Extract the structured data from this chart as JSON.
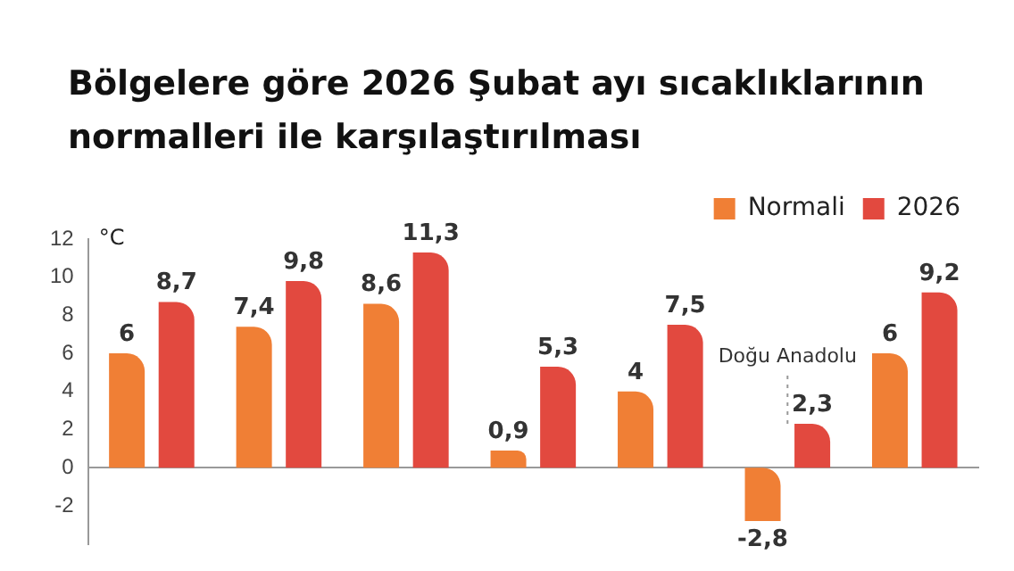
{
  "chart_data": {
    "type": "bar",
    "title": "Bölgelere göre 2026 Şubat ayı sıcaklıklarının normalleri ile karşılaştırılması",
    "ylabel": "°C",
    "categories": [
      null,
      null,
      null,
      null,
      null,
      "Doğu Anadolu",
      null
    ],
    "series": [
      {
        "name": "Normali",
        "color": "#f07f35",
        "values": [
          6,
          7.4,
          8.6,
          0.9,
          4,
          -2.8,
          6
        ],
        "value_labels": [
          "6",
          "7,4",
          "8,6",
          "0,9",
          "4",
          "-2,8",
          "6"
        ]
      },
      {
        "name": "2026",
        "color": "#e2493f",
        "values": [
          8.7,
          9.8,
          11.3,
          5.3,
          7.5,
          2.3,
          9.2
        ],
        "value_labels": [
          "8,7",
          "9,8",
          "11,3",
          "5,3",
          "7,5",
          "2,3",
          "9,2"
        ]
      }
    ],
    "ylim": [
      -4,
      12
    ],
    "yticks": [
      -2,
      0,
      2,
      4,
      6,
      8,
      10,
      12
    ],
    "legend": "top right"
  }
}
